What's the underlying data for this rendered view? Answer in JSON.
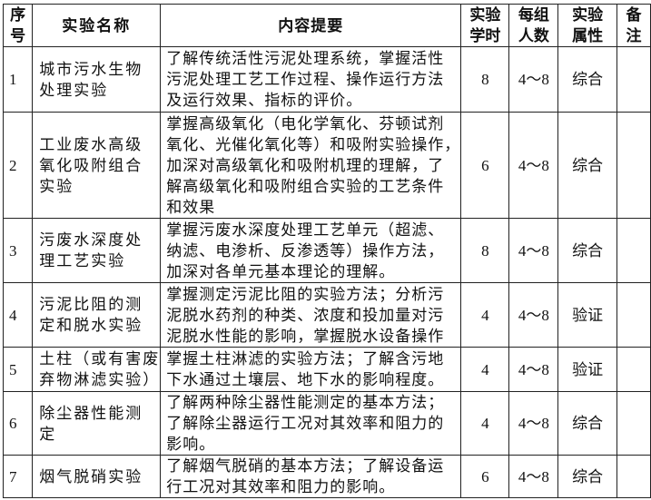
{
  "header": {
    "no": [
      "序",
      "号"
    ],
    "name": [
      "实验名称"
    ],
    "desc": [
      "内容提要"
    ],
    "hours": [
      "实验",
      "学时"
    ],
    "group": [
      "每组",
      "人数"
    ],
    "type": [
      "实验",
      "属性"
    ],
    "note": [
      "备",
      "注"
    ]
  },
  "rows": [
    {
      "no": "1",
      "name": [
        "城市污水生物",
        "处理实验"
      ],
      "desc": [
        "了解传统活性污泥处理系统，掌握活性",
        "污泥处理工艺工作过程、操作运行方法",
        "及运行效果、指标的评价。"
      ],
      "hours": "8",
      "group": "4～8",
      "type": "综合",
      "note": ""
    },
    {
      "no": "2",
      "name": [
        "工业废水高级",
        "氧化吸附组合",
        "实验"
      ],
      "desc": [
        "掌握高级氧化（电化学氧化、芬顿试剂",
        "氧化、光催化氧化等）和吸附实验操作，",
        "加深对高级氧化和吸附机理的理解，了",
        "解高级氧化和吸附组合实验的工艺条件",
        "和效果"
      ],
      "hours": "6",
      "group": "4～8",
      "type": "综合",
      "note": ""
    },
    {
      "no": "3",
      "name": [
        "污废水深度处",
        "理工艺实验"
      ],
      "desc": [
        "掌握污废水深度处理工艺单元（超滤、",
        "纳滤、电渗析、反渗透等）操作方法，",
        "加深对各单元基本理论的理解。"
      ],
      "hours": "8",
      "group": "4～8",
      "type": "综合",
      "note": ""
    },
    {
      "no": "4",
      "name": [
        "污泥比阻的测",
        "定和脱水实验"
      ],
      "desc": [
        "掌握测定污泥比阻的实验方法；分析污",
        "泥脱水药剂的种类、浓度和投加量对污",
        "泥脱水性能的影响，掌握脱水设备操作"
      ],
      "hours": "4",
      "group": "4～8",
      "type": "验证",
      "note": ""
    },
    {
      "no": "5",
      "name": [
        "土柱（或有害废",
        "弃物淋滤实验）"
      ],
      "desc": [
        "  掌握土柱淋滤的实验方法；了解含污地",
        "下水通过土壤层、地下水的影响程度。"
      ],
      "hours": "4",
      "group": "4～8",
      "type": "验证",
      "note": ""
    },
    {
      "no": "6",
      "name": [
        "除尘器性能测",
        "定"
      ],
      "desc": [
        "了解两种除尘器性能测定的基本方法；",
        "了解除尘器运行工况对其效率和阻力的",
        "影响。"
      ],
      "hours": "4",
      "group": "4～8",
      "type": "综合",
      "note": ""
    },
    {
      "no": "7",
      "name": [
        "烟气脱硝实验"
      ],
      "desc": [
        "了解烟气脱硝的基本方法；了解设备运",
        "行工况对其效率和阻力的影响。"
      ],
      "hours": "6",
      "group": "4～8",
      "type": "综合",
      "note": ""
    }
  ]
}
